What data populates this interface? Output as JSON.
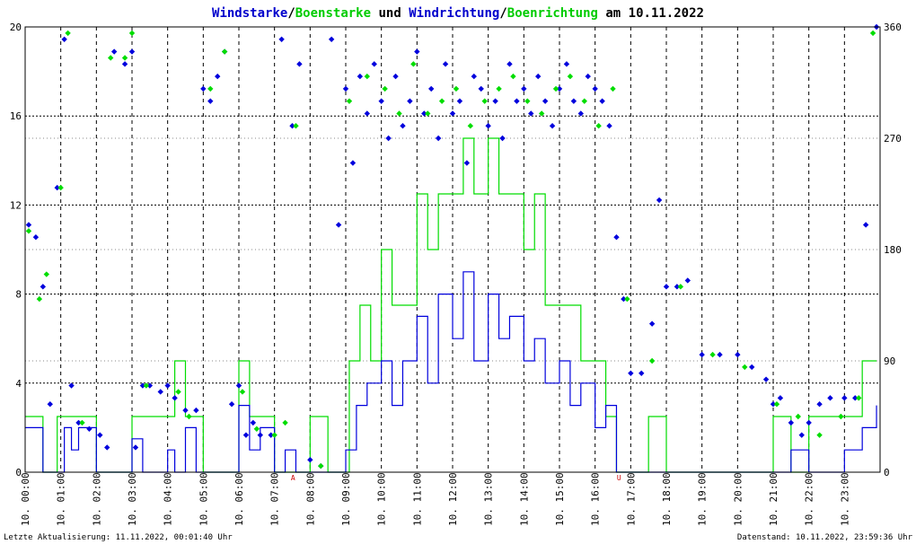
{
  "title": {
    "parts": [
      {
        "text": "Windstarke",
        "color": "#0000cc"
      },
      {
        "text": "/",
        "color": "#000000"
      },
      {
        "text": "Boenstarke",
        "color": "#00cc00"
      },
      {
        "text": " und ",
        "color": "#000000"
      },
      {
        "text": "Windrichtung",
        "color": "#0000cc"
      },
      {
        "text": "/",
        "color": "#000000"
      },
      {
        "text": "Boenrichtung",
        "color": "#00cc00"
      },
      {
        "text": " am 10.11.2022",
        "color": "#000000"
      }
    ]
  },
  "footer": {
    "left": "Letzte Aktualisierung: 11.11.2022, 00:01:40 Uhr",
    "right": "Datenstand: 10.11.2022, 23:59:36 Uhr"
  },
  "markers": [
    {
      "label": "A",
      "hour": 7.52
    },
    {
      "label": "U",
      "hour": 16.67
    }
  ],
  "colors": {
    "wind": "#0000dd",
    "gust": "#00dd00",
    "direction": "#0000dd",
    "gust_direction": "#00dd00",
    "grid": "#000000",
    "marker": "#cc0000"
  },
  "chart_data": {
    "type": "line",
    "ylim_left": [
      0,
      20
    ],
    "ylim_right": [
      0,
      360
    ],
    "yticks_left": [
      "0",
      "4",
      "8",
      "12",
      "16",
      "20"
    ],
    "yticks_right": [
      "0",
      "90",
      "180",
      "270",
      "360"
    ],
    "xticks": [
      "10. 00:00",
      "10. 01:00",
      "10. 02:00",
      "10. 03:00",
      "10. 04:00",
      "10. 05:00",
      "10. 06:00",
      "10. 07:00",
      "10. 08:00",
      "10. 09:00",
      "10. 10:00",
      "10. 11:00",
      "10. 12:00",
      "10. 13:00",
      "10. 14:00",
      "10. 15:00",
      "10. 16:00",
      "10. 17:00",
      "10. 18:00",
      "10. 19:00",
      "10. 20:00",
      "10. 21:00",
      "10. 22:00",
      "10. 23:00"
    ],
    "grid": true,
    "series": [
      {
        "name": "Windstarke",
        "axis": "left",
        "kind": "line",
        "x": [
          0.0,
          0.5,
          0.9,
          1.1,
          1.3,
          1.5,
          2.0,
          2.5,
          2.8,
          3.0,
          3.3,
          3.6,
          4.0,
          4.2,
          4.5,
          4.8,
          5.0,
          5.5,
          5.8,
          6.0,
          6.3,
          6.6,
          7.0,
          7.3,
          7.6,
          8.0,
          8.5,
          8.8,
          9.0,
          9.3,
          9.6,
          10.0,
          10.3,
          10.6,
          11.0,
          11.3,
          11.6,
          12.0,
          12.3,
          12.6,
          13.0,
          13.3,
          13.6,
          14.0,
          14.3,
          14.6,
          15.0,
          15.3,
          15.6,
          16.0,
          16.3,
          16.6,
          17.0,
          17.5,
          18.0,
          18.5,
          19.0,
          19.5,
          20.0,
          20.5,
          21.0,
          21.5,
          22.0,
          22.5,
          23.0,
          23.5,
          23.9
        ],
        "values": [
          2.0,
          0.0,
          0.0,
          2.0,
          1.0,
          2.0,
          0.0,
          0.0,
          0.0,
          1.5,
          0.0,
          0.0,
          1.0,
          0.0,
          2.0,
          0.0,
          0.0,
          0.0,
          0.0,
          3.0,
          1.0,
          2.0,
          0.0,
          1.0,
          0.0,
          0.0,
          0.0,
          0.0,
          1.0,
          3.0,
          4.0,
          5.0,
          3.0,
          5.0,
          7.0,
          4.0,
          8.0,
          6.0,
          9.0,
          5.0,
          8.0,
          6.0,
          7.0,
          5.0,
          6.0,
          4.0,
          5.0,
          3.0,
          4.0,
          2.0,
          3.0,
          0.0,
          0.0,
          0.0,
          0.0,
          0.0,
          0.0,
          0.0,
          0.0,
          0.0,
          0.0,
          1.0,
          0.0,
          0.0,
          1.0,
          2.0,
          3.0
        ]
      },
      {
        "name": "Boenstarke",
        "axis": "left",
        "kind": "line",
        "x": [
          0.0,
          0.5,
          0.9,
          1.1,
          1.5,
          2.0,
          2.8,
          3.0,
          3.5,
          4.0,
          4.2,
          4.5,
          5.0,
          5.8,
          6.0,
          6.3,
          6.6,
          7.0,
          7.6,
          8.0,
          8.5,
          8.9,
          9.1,
          9.4,
          9.7,
          10.0,
          10.3,
          10.6,
          11.0,
          11.3,
          11.6,
          12.0,
          12.3,
          12.6,
          13.0,
          13.3,
          13.6,
          14.0,
          14.3,
          14.6,
          15.0,
          15.3,
          15.6,
          16.0,
          16.3,
          16.6,
          17.5,
          18.0,
          18.5,
          20.5,
          21.0,
          21.5,
          22.0,
          22.5,
          23.0,
          23.5,
          23.9
        ],
        "values": [
          2.5,
          0.0,
          2.5,
          2.5,
          2.5,
          0.0,
          0.0,
          2.5,
          2.5,
          2.5,
          5.0,
          2.5,
          0.0,
          0.0,
          5.0,
          2.5,
          2.5,
          0.0,
          0.0,
          2.5,
          0.0,
          0.0,
          5.0,
          7.5,
          5.0,
          10.0,
          7.5,
          7.5,
          12.5,
          10.0,
          12.5,
          12.5,
          15.0,
          12.5,
          15.0,
          12.5,
          12.5,
          10.0,
          12.5,
          7.5,
          7.5,
          7.5,
          5.0,
          5.0,
          2.5,
          0.0,
          2.5,
          0.0,
          0.0,
          0.0,
          2.5,
          0.0,
          2.5,
          2.5,
          2.5,
          5.0,
          5.0
        ]
      },
      {
        "name": "Windrichtung",
        "axis": "right",
        "kind": "scatter",
        "x": [
          0.1,
          0.3,
          0.5,
          0.7,
          0.9,
          1.1,
          1.3,
          1.5,
          1.8,
          2.1,
          2.3,
          2.5,
          2.8,
          3.0,
          3.1,
          3.3,
          3.5,
          3.8,
          4.0,
          4.2,
          4.5,
          4.8,
          5.0,
          5.2,
          5.4,
          5.6,
          5.8,
          6.0,
          6.2,
          6.4,
          6.6,
          6.9,
          7.2,
          7.5,
          7.7,
          8.0,
          8.3,
          8.6,
          8.8,
          9.0,
          9.2,
          9.4,
          9.6,
          9.8,
          10.0,
          10.2,
          10.4,
          10.6,
          10.8,
          11.0,
          11.2,
          11.4,
          11.6,
          11.8,
          12.0,
          12.2,
          12.4,
          12.6,
          12.8,
          13.0,
          13.2,
          13.4,
          13.6,
          13.8,
          14.0,
          14.2,
          14.4,
          14.6,
          14.8,
          15.0,
          15.2,
          15.4,
          15.6,
          15.8,
          16.0,
          16.2,
          16.4,
          16.6,
          16.8,
          17.0,
          17.3,
          17.6,
          17.8,
          18.0,
          18.3,
          18.6,
          19.0,
          19.5,
          20.0,
          20.4,
          20.8,
          21.0,
          21.2,
          21.5,
          21.8,
          22.0,
          22.3,
          22.6,
          23.0,
          23.3,
          23.6,
          23.9
        ],
        "values": [
          200,
          190,
          150,
          55,
          230,
          350,
          70,
          40,
          35,
          30,
          20,
          340,
          330,
          340,
          20,
          70,
          70,
          65,
          70,
          60,
          50,
          50,
          310,
          300,
          320,
          340,
          55,
          70,
          30,
          40,
          30,
          30,
          350,
          280,
          330,
          10,
          5,
          350,
          200,
          310,
          250,
          320,
          290,
          330,
          300,
          270,
          320,
          280,
          300,
          340,
          290,
          310,
          270,
          330,
          290,
          300,
          250,
          320,
          310,
          280,
          300,
          270,
          330,
          300,
          310,
          290,
          320,
          300,
          280,
          310,
          330,
          300,
          290,
          320,
          310,
          300,
          280,
          190,
          140,
          80,
          80,
          120,
          220,
          150,
          150,
          155,
          95,
          95,
          95,
          85,
          75,
          55,
          60,
          40,
          30,
          40,
          55,
          60,
          60,
          60,
          200,
          360
        ]
      },
      {
        "name": "Boenrichtung",
        "axis": "right",
        "kind": "scatter",
        "x": [
          0.1,
          0.4,
          0.6,
          1.0,
          1.2,
          1.6,
          2.4,
          2.8,
          3.0,
          3.4,
          4.3,
          4.6,
          5.2,
          5.6,
          6.1,
          6.5,
          7.0,
          7.3,
          7.6,
          8.3,
          9.1,
          9.6,
          10.1,
          10.5,
          10.9,
          11.3,
          11.7,
          12.1,
          12.5,
          12.9,
          13.3,
          13.7,
          14.1,
          14.5,
          14.9,
          15.3,
          15.7,
          16.1,
          16.5,
          16.9,
          17.6,
          18.4,
          19.3,
          20.2,
          21.1,
          21.7,
          22.3,
          22.9,
          23.4,
          23.8
        ],
        "values": [
          195,
          140,
          160,
          230,
          355,
          40,
          335,
          335,
          355,
          70,
          65,
          45,
          310,
          340,
          65,
          35,
          30,
          40,
          280,
          5,
          300,
          320,
          310,
          290,
          330,
          290,
          300,
          310,
          280,
          300,
          310,
          320,
          300,
          290,
          310,
          320,
          300,
          280,
          310,
          140,
          90,
          150,
          95,
          85,
          55,
          45,
          30,
          45,
          60,
          355
        ]
      }
    ]
  }
}
